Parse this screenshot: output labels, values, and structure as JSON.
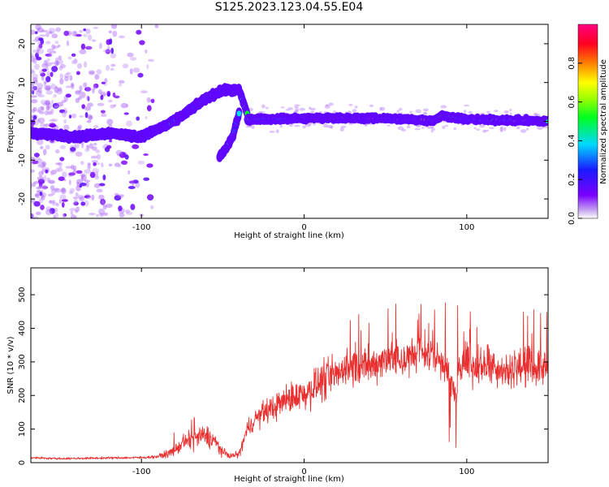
{
  "title": "S125.2023.123.04.55.E04",
  "chart_data": [
    {
      "type": "heatmap",
      "xlabel": "Height of straight line (km)",
      "ylabel": "Frequency (Hz)",
      "xlim": [
        -168,
        150
      ],
      "ylim": [
        -25,
        25
      ],
      "xticks": [
        -100,
        0,
        100
      ],
      "yticks": [
        -20,
        -10,
        0,
        10,
        20
      ],
      "grid": false,
      "colorbar": {
        "label": "Normalized spectral amplitude",
        "range": [
          0.0,
          1.0
        ],
        "ticks": [
          "0.0",
          "0.2",
          "0.4",
          "0.6",
          "0.8"
        ],
        "colormap": "rainbow (violet-blue-cyan-green-yellow-red-magenta)"
      },
      "features": [
        {
          "segment": "ridge",
          "x": [
            -168,
            -140,
            -120,
            -100,
            -90,
            -80,
            -70,
            -60,
            -50,
            -40,
            -35
          ],
          "y": [
            -3,
            -4,
            -3,
            -4,
            -2,
            0,
            3,
            6,
            8,
            8,
            2
          ]
        },
        {
          "segment": "branch",
          "x": [
            -52,
            -48,
            -44,
            -40
          ],
          "y": [
            -9,
            -7,
            -4,
            2
          ]
        },
        {
          "segment": "line",
          "x": [
            -35,
            0,
            50,
            80,
            85,
            100,
            150
          ],
          "y": [
            0.5,
            0.8,
            0.8,
            0.2,
            1.5,
            0.5,
            0
          ]
        }
      ]
    },
    {
      "type": "line",
      "xlabel": "Height of straight line (km)",
      "ylabel": "SNR (10 * v/v)",
      "xlim": [
        -168,
        150
      ],
      "ylim": [
        0,
        580
      ],
      "xticks": [
        -100,
        0,
        100
      ],
      "yticks": [
        0,
        100,
        200,
        300,
        400,
        500
      ],
      "grid": false,
      "color": "#e83030",
      "series": [
        {
          "x": [
            -168,
            -150,
            -120,
            -100,
            -90,
            -85,
            -80,
            -75,
            -70,
            -65,
            -60,
            -55,
            -50,
            -45,
            -40,
            -35,
            -30,
            -25,
            -20,
            -15,
            -10,
            -5,
            0,
            5,
            10,
            15,
            20,
            25,
            30,
            35,
            40,
            45,
            50,
            55,
            60,
            65,
            70,
            75,
            80,
            85,
            88,
            90,
            92,
            94,
            95,
            98,
            100,
            105,
            110,
            115,
            120,
            125,
            130,
            135,
            140,
            145,
            150
          ],
          "values": [
            15,
            12,
            14,
            15,
            18,
            25,
            35,
            55,
            70,
            75,
            80,
            65,
            30,
            20,
            25,
            100,
            130,
            150,
            160,
            175,
            190,
            200,
            205,
            220,
            240,
            250,
            265,
            280,
            290,
            285,
            280,
            300,
            310,
            320,
            300,
            310,
            320,
            330,
            320,
            300,
            280,
            250,
            220,
            190,
            260,
            300,
            310,
            280,
            290,
            300,
            280,
            270,
            290,
            280,
            290,
            280,
            285
          ]
        }
      ]
    }
  ]
}
